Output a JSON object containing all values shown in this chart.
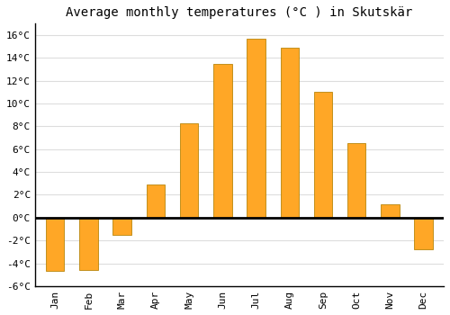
{
  "title": "Average monthly temperatures (°C ) in Skutskär",
  "months": [
    "Jan",
    "Feb",
    "Mar",
    "Apr",
    "May",
    "Jun",
    "Jul",
    "Aug",
    "Sep",
    "Oct",
    "Nov",
    "Dec"
  ],
  "values": [
    -4.7,
    -4.6,
    -1.5,
    2.9,
    8.3,
    13.5,
    15.7,
    14.9,
    11.0,
    6.5,
    1.2,
    -2.8
  ],
  "bar_color": "#FFA726",
  "bar_edge_color": "#B8860B",
  "ylim": [
    -6,
    17
  ],
  "yticks": [
    -6,
    -4,
    -2,
    0,
    2,
    4,
    6,
    8,
    10,
    12,
    14,
    16
  ],
  "ytick_labels": [
    "-6°C",
    "-4°C",
    "-2°C",
    "0°C",
    "2°C",
    "4°C",
    "6°C",
    "8°C",
    "10°C",
    "12°C",
    "14°C",
    "16°C"
  ],
  "grid_color": "#dddddd",
  "background_color": "#ffffff",
  "zero_line_color": "#000000",
  "title_fontsize": 10,
  "tick_fontsize": 8,
  "font_family": "monospace",
  "bar_width": 0.55
}
